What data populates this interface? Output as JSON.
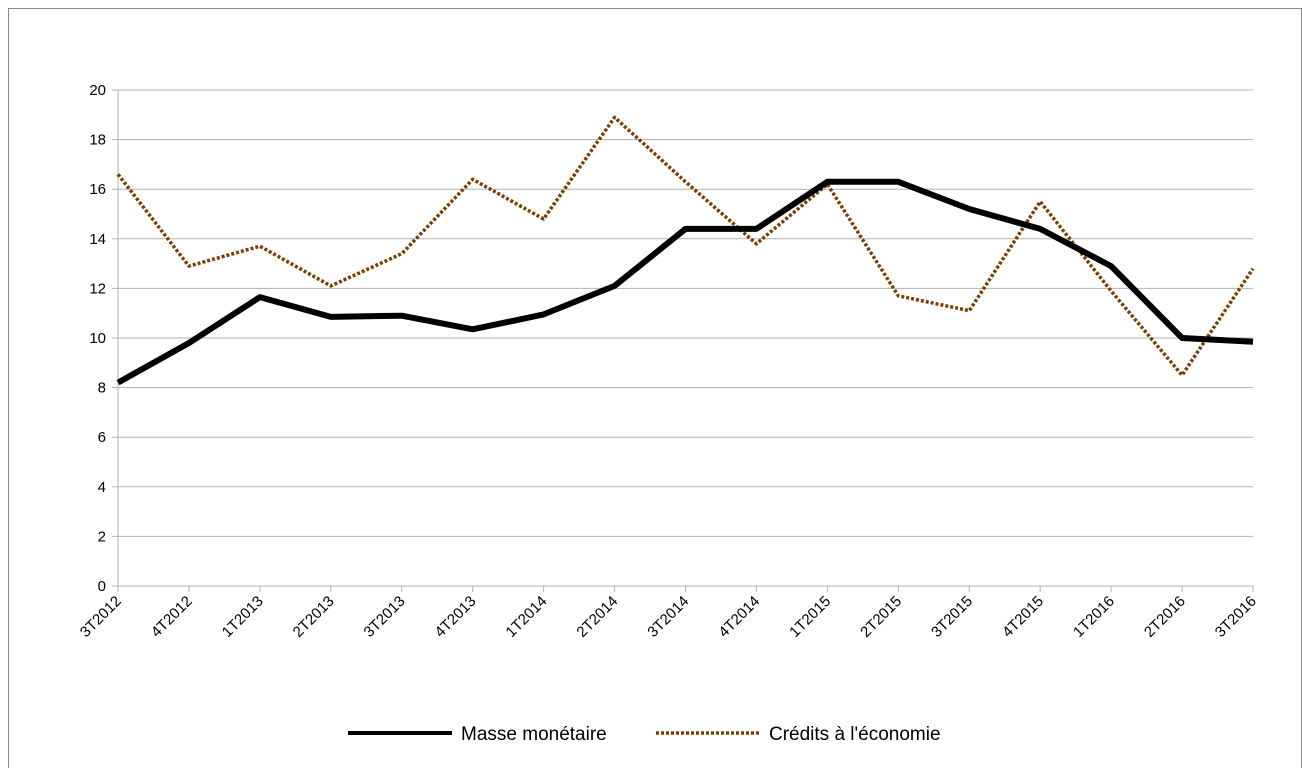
{
  "chart_data": {
    "type": "line",
    "title": "",
    "xlabel": "",
    "ylabel": "",
    "categories": [
      "3T2012",
      "4T2012",
      "1T2013",
      "2T2013",
      "3T2013",
      "4T2013",
      "1T2014",
      "2T2014",
      "3T2014",
      "4T2014",
      "1T2015",
      "2T2015",
      "3T2015",
      "4T2015",
      "1T2016",
      "2T2016",
      "3T2016"
    ],
    "ylim": [
      0,
      20
    ],
    "yticks": [
      0,
      2,
      4,
      6,
      8,
      10,
      12,
      14,
      16,
      18,
      20
    ],
    "grid": true,
    "legend_position": "bottom",
    "series": [
      {
        "name": "Masse monétaire",
        "color": "#000000",
        "style": "solid",
        "values": [
          8.2,
          9.8,
          11.65,
          10.85,
          10.9,
          10.35,
          10.95,
          12.1,
          14.4,
          14.4,
          16.3,
          16.3,
          15.2,
          14.4,
          12.9,
          10.0,
          9.85
        ]
      },
      {
        "name": "Crédits à l'économie",
        "color": "#7b3f00",
        "style": "dotted",
        "values": [
          16.6,
          12.9,
          13.7,
          12.1,
          13.4,
          16.4,
          14.8,
          18.9,
          16.3,
          13.8,
          16.2,
          11.7,
          11.1,
          15.5,
          11.9,
          8.5,
          12.8
        ]
      }
    ]
  }
}
